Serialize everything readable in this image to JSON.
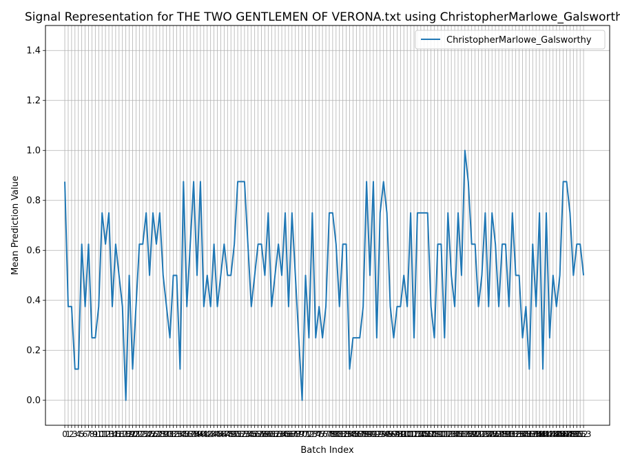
{
  "chart_data": {
    "type": "line",
    "title": "Signal Representation for THE TWO GENTLEMEN OF VERONA.txt using ChristopherMarlowe_Galsworthy",
    "xlabel": "Batch Index",
    "ylabel": "Mean Prediction Value",
    "ylim": [
      -0.1,
      1.5
    ],
    "xlim": [
      -5.7,
      160.7
    ],
    "yticks": [
      "0.0",
      "0.2",
      "0.4",
      "0.6",
      "0.8",
      "1.0",
      "1.2",
      "1.4"
    ],
    "grid": true,
    "legend_position": "top-right",
    "colors": {
      "series": "#1f77b4",
      "grid": "#b0b0b0"
    },
    "series": [
      {
        "name": "ChristopherMarlowe_Galsworthy",
        "values": [
          0.875,
          0.375,
          0.375,
          0.125,
          0.125,
          0.625,
          0.375,
          0.625,
          0.25,
          0.25,
          0.375,
          0.75,
          0.625,
          0.75,
          0.375,
          0.625,
          0.5,
          0.375,
          0.0,
          0.5,
          0.125,
          0.375,
          0.625,
          0.625,
          0.75,
          0.5,
          0.75,
          0.625,
          0.75,
          0.5,
          0.375,
          0.25,
          0.5,
          0.5,
          0.125,
          0.875,
          0.375,
          0.625,
          0.875,
          0.5,
          0.875,
          0.375,
          0.5,
          0.375,
          0.625,
          0.375,
          0.5,
          0.625,
          0.5,
          0.5,
          0.625,
          0.875,
          0.875,
          0.875,
          0.625,
          0.375,
          0.5,
          0.625,
          0.625,
          0.5,
          0.75,
          0.375,
          0.5,
          0.625,
          0.5,
          0.75,
          0.375,
          0.75,
          0.5,
          0.25,
          0.0,
          0.5,
          0.25,
          0.75,
          0.25,
          0.375,
          0.25,
          0.375,
          0.75,
          0.75,
          0.625,
          0.375,
          0.625,
          0.625,
          0.125,
          0.25,
          0.25,
          0.25,
          0.375,
          0.875,
          0.5,
          0.875,
          0.25,
          0.75,
          0.875,
          0.75,
          0.375,
          0.25,
          0.375,
          0.375,
          0.5,
          0.375,
          0.75,
          0.25,
          0.75,
          0.75,
          0.75,
          0.75,
          0.375,
          0.25,
          0.625,
          0.625,
          0.25,
          0.75,
          0.5,
          0.375,
          0.75,
          0.5,
          1.0,
          0.875,
          0.625,
          0.625,
          0.375,
          0.5,
          0.75,
          0.375,
          0.75,
          0.625,
          0.375,
          0.625,
          0.625,
          0.375,
          0.75,
          0.5,
          0.5,
          0.25,
          0.375,
          0.125,
          0.625,
          0.375,
          0.75,
          0.125,
          0.75,
          0.25,
          0.5,
          0.375,
          0.5,
          0.875,
          0.875,
          0.75,
          0.5,
          0.625,
          0.625,
          0.5
        ]
      }
    ]
  }
}
